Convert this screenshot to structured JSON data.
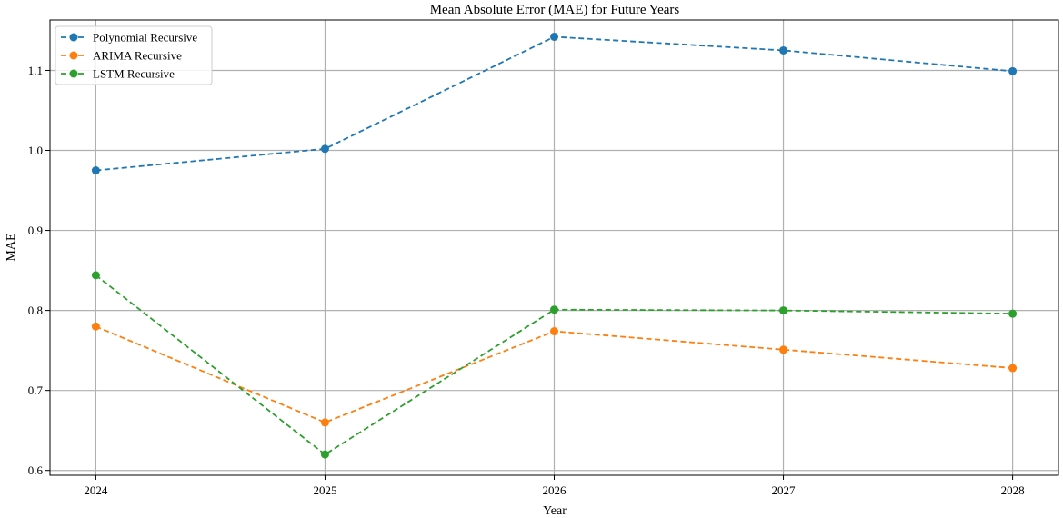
{
  "chart_data": {
    "type": "line",
    "title": "Mean Absolute Error (MAE) for Future Years",
    "xlabel": "Year",
    "ylabel": "MAE",
    "x": [
      2024,
      2025,
      2026,
      2027,
      2028
    ],
    "x_tick_labels": [
      "2024",
      "2025",
      "2026",
      "2027",
      "2028"
    ],
    "y_ticks": [
      0.6,
      0.7,
      0.8,
      0.9,
      1.0,
      1.1
    ],
    "y_tick_labels": [
      "0.6",
      "0.7",
      "0.8",
      "0.9",
      "1.0",
      "1.1"
    ],
    "xlim": [
      2023.8,
      2028.2
    ],
    "ylim": [
      0.594,
      1.163
    ],
    "grid": true,
    "legend_position": "top-left",
    "series": [
      {
        "name": "Polynomial Recursive",
        "color": "#1f77b4",
        "linestyle": "dashed",
        "marker": "circle",
        "values": [
          0.975,
          1.002,
          1.142,
          1.125,
          1.099
        ]
      },
      {
        "name": "ARIMA Recursive",
        "color": "#ff7f0e",
        "linestyle": "dashed",
        "marker": "circle",
        "values": [
          0.78,
          0.66,
          0.774,
          0.751,
          0.728
        ]
      },
      {
        "name": "LSTM Recursive",
        "color": "#2ca02c",
        "linestyle": "dashed",
        "marker": "circle",
        "values": [
          0.844,
          0.62,
          0.801,
          0.8,
          0.796
        ]
      }
    ]
  }
}
